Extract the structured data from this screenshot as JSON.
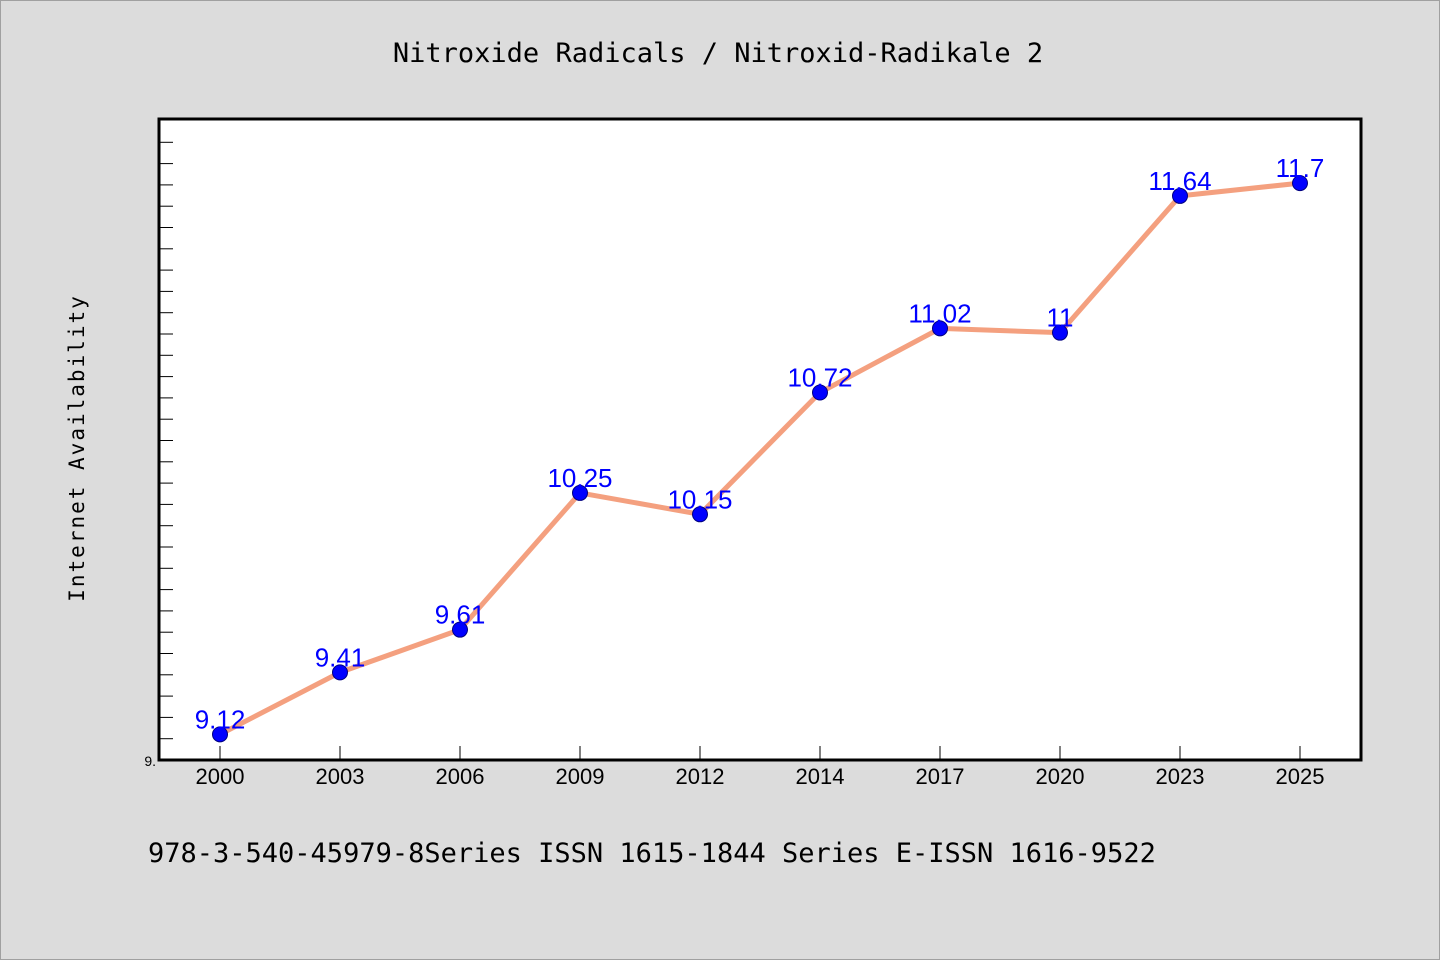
{
  "chart_data": {
    "type": "line",
    "title": "Nitroxide Radicals / Nitroxid-Radikale 2",
    "xlabel": "",
    "ylabel": "Internet Availability",
    "categories": [
      "2000",
      "2003",
      "2006",
      "2009",
      "2012",
      "2014",
      "2017",
      "2020",
      "2023",
      "2025"
    ],
    "series": [
      {
        "values": [
          9.12,
          9.41,
          9.61,
          10.25,
          10.15,
          10.72,
          11.02,
          11,
          11.64,
          11.7
        ]
      }
    ],
    "data_labels": [
      "9.12",
      "9.41",
      "9.61",
      "10.25",
      "10.15",
      "10.72",
      "11.02",
      "11",
      "11.64",
      "11.7"
    ],
    "ytick_label": "9.",
    "ylim": [
      9.0,
      12.0
    ],
    "grid": false,
    "legend": "none",
    "line_color": "#f4a07f",
    "marker_color": "#0000ff",
    "label_color": "#0000ff"
  },
  "footer_text": "978-3-540-45979-8Series ISSN 1615-1844 Series E-ISSN 1616-9522"
}
